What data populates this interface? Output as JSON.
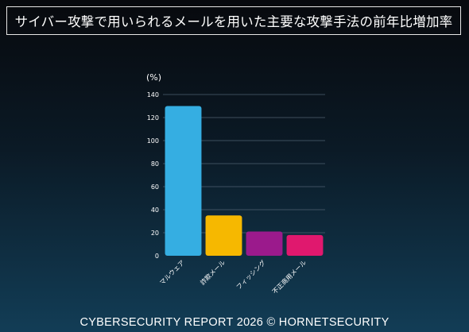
{
  "header": {
    "title": "サイバー攻撃で用いられるメールを用いた主要な攻撃手法の前年比増加率"
  },
  "chart_data": {
    "type": "bar",
    "unit_label": "(%)",
    "categories": [
      "マルウェア",
      "詐欺メール",
      "フィッシング",
      "不正商用メール"
    ],
    "values": [
      130,
      35,
      21,
      18
    ],
    "colors": [
      "#35aee2",
      "#f6b800",
      "#9b1a8c",
      "#e0186e"
    ],
    "ylim": [
      0,
      140
    ],
    "yticks": [
      0,
      20,
      40,
      60,
      80,
      100,
      120,
      140
    ],
    "grid": true,
    "legend": "none"
  },
  "footer": {
    "credit": "CYBERSECURITY REPORT 2026 © HORNETSECURITY"
  }
}
